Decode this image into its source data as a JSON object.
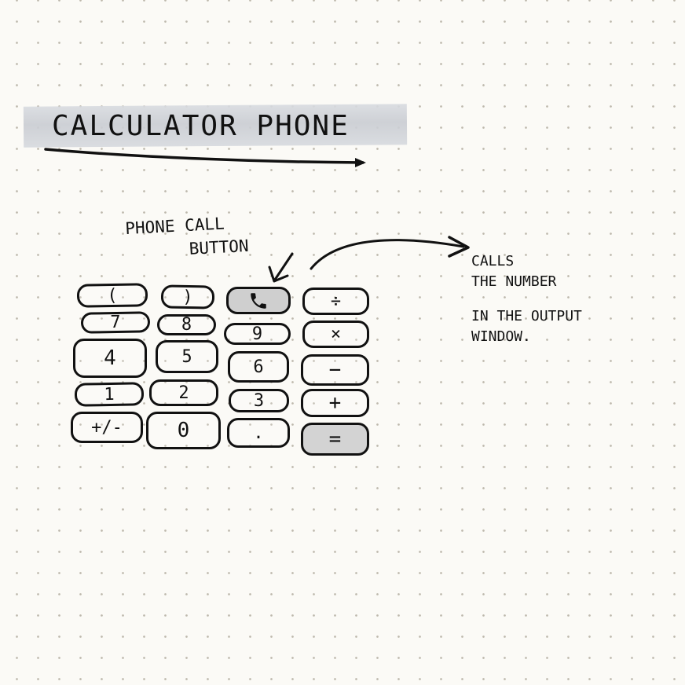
{
  "title": "CALCULATOR PHONE",
  "callout": {
    "line1": "PHONE CALL",
    "line2": "BUTTON"
  },
  "note": {
    "line1": "CALLS",
    "line2": "THE NUMBER",
    "line3": "IN THE OUTPUT",
    "line4": "WINDOW."
  },
  "keypad": {
    "rows": [
      [
        "(",
        ")",
        "phone",
        "÷"
      ],
      [
        "7",
        "8",
        "9",
        "×"
      ],
      [
        "4",
        "5",
        "6",
        "−"
      ],
      [
        "1",
        "2",
        "3",
        "+"
      ],
      [
        "+/-",
        "0",
        ".",
        "="
      ]
    ]
  },
  "colors": {
    "ink": "#111111",
    "paper": "#fbfaf6",
    "highlight": "#c9ccd2",
    "shade": "#d3d3d3"
  },
  "icons": {
    "phone_key": "phone-icon"
  }
}
